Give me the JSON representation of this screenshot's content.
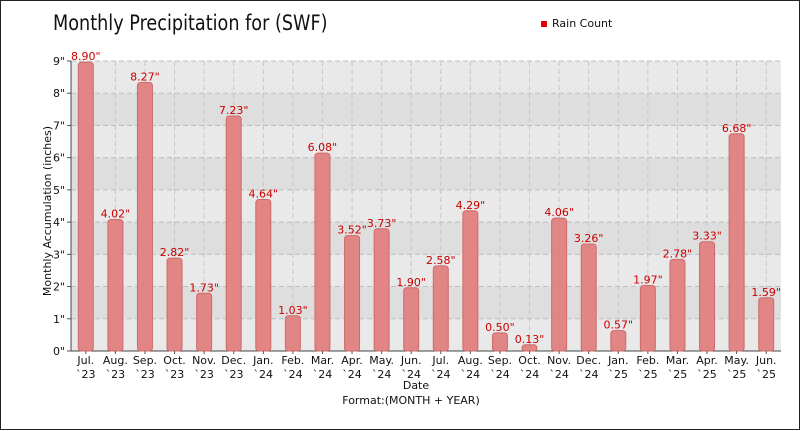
{
  "chart_data": {
    "type": "bar",
    "title": "Monthly Precipitation for (SWF)",
    "xlabel": "Date",
    "x_subtitle": "Format:(MONTH + YEAR)",
    "ylabel": "Monthly Accumulation (inches)",
    "ylim": [
      0,
      9
    ],
    "y_ticks": [
      "0\"",
      "1\"",
      "2\"",
      "3\"",
      "4\"",
      "5\"",
      "6\"",
      "7\"",
      "8\"",
      "9\""
    ],
    "grid": true,
    "legend_position": "top-right",
    "categories": [
      [
        "Jul.",
        "`23"
      ],
      [
        "Aug.",
        "`23"
      ],
      [
        "Sep.",
        "`23"
      ],
      [
        "Oct.",
        "`23"
      ],
      [
        "Nov.",
        "`23"
      ],
      [
        "Dec.",
        "`23"
      ],
      [
        "Jan.",
        "`24"
      ],
      [
        "Feb.",
        "`24"
      ],
      [
        "Mar.",
        "`24"
      ],
      [
        "Apr.",
        "`24"
      ],
      [
        "May.",
        "`24"
      ],
      [
        "Jun.",
        "`24"
      ],
      [
        "Jul.",
        "`24"
      ],
      [
        "Aug.",
        "`24"
      ],
      [
        "Sep.",
        "`24"
      ],
      [
        "Oct.",
        "`24"
      ],
      [
        "Nov.",
        "`24"
      ],
      [
        "Dec.",
        "`24"
      ],
      [
        "Jan.",
        "`25"
      ],
      [
        "Feb.",
        "`25"
      ],
      [
        "Mar.",
        "`25"
      ],
      [
        "Apr.",
        "`25"
      ],
      [
        "May.",
        "`25"
      ],
      [
        "Jun.",
        "`25"
      ]
    ],
    "series": [
      {
        "name": "Rain Count",
        "color": "#e08080",
        "values": [
          8.9,
          4.02,
          8.27,
          2.82,
          1.73,
          7.23,
          4.64,
          1.03,
          6.08,
          3.52,
          3.73,
          1.9,
          2.58,
          4.29,
          0.5,
          0.13,
          4.06,
          3.26,
          0.57,
          1.97,
          2.78,
          3.33,
          6.68,
          1.59
        ],
        "labels": [
          "8.90\"",
          "4.02\"",
          "8.27\"",
          "2.82\"",
          "1.73\"",
          "7.23\"",
          "4.64\"",
          "1.03\"",
          "6.08\"",
          "3.52\"",
          "3.73\"",
          "1.90\"",
          "2.58\"",
          "4.29\"",
          "0.50\"",
          "0.13\"",
          "4.06\"",
          "3.26\"",
          "0.57\"",
          "1.97\"",
          "2.78\"",
          "3.33\"",
          "6.68\"",
          "1.59\""
        ]
      }
    ],
    "legend_color": "#e00000",
    "label_color": "#cc0000"
  }
}
